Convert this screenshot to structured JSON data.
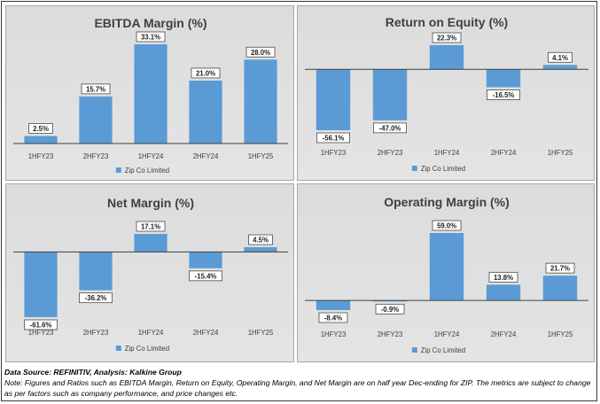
{
  "colors": {
    "bar": "#5b9bd5",
    "axis": "#3f3f3f",
    "text": "#404040"
  },
  "chart_data": [
    {
      "type": "bar",
      "title": "EBITDA Margin (%)",
      "categories": [
        "1HFY23",
        "2HFY23",
        "1HFY24",
        "2HFY24",
        "1HFY25"
      ],
      "series": [
        {
          "name": "Zip Co Limited",
          "values": [
            2.5,
            15.7,
            33.1,
            21.0,
            28.0
          ]
        }
      ],
      "labels": [
        "2.5%",
        "15.7%",
        "33.1%",
        "21.0%",
        "28.0%"
      ],
      "ylim": [
        0,
        33.1
      ],
      "legend": "bottom"
    },
    {
      "type": "bar",
      "title": "Return on Equity (%)",
      "categories": [
        "1HFY23",
        "2HFY23",
        "1HFY24",
        "2HFY24",
        "1HFY25"
      ],
      "series": [
        {
          "name": "Zip Co Limited",
          "values": [
            -56.1,
            -47.0,
            22.3,
            -16.5,
            4.1
          ]
        }
      ],
      "labels": [
        "-56.1%",
        "-47.0%",
        "22.3%",
        "-16.5%",
        "4.1%"
      ],
      "ylim": [
        -56.1,
        22.3
      ],
      "legend": "bottom"
    },
    {
      "type": "bar",
      "title": "Net Margin (%)",
      "categories": [
        "1HFY23",
        "2HFY23",
        "1HFY24",
        "2HFY24",
        "1HFY25"
      ],
      "series": [
        {
          "name": "Zip Co Limited",
          "values": [
            -61.6,
            -36.2,
            17.1,
            -15.4,
            4.5
          ]
        }
      ],
      "labels": [
        "-61.6%",
        "-36.2%",
        "17.1%",
        "-15.4%",
        "4.5%"
      ],
      "ylim": [
        -61.6,
        17.1
      ],
      "legend": "bottom"
    },
    {
      "type": "bar",
      "title": "Operating Margin (%)",
      "categories": [
        "1HFY23",
        "2HFY23",
        "1HFY24",
        "2HFY24",
        "1HFY25"
      ],
      "series": [
        {
          "name": "Zip Co Limited",
          "values": [
            -8.4,
            -0.9,
            59.0,
            13.8,
            21.7
          ]
        }
      ],
      "labels": [
        "-8.4%",
        "-0.9%",
        "59.0%",
        "13.8%",
        "21.7%"
      ],
      "ylim": [
        -8.4,
        59.0
      ],
      "legend": "bottom"
    }
  ],
  "footer": {
    "source": "Data Source: REFINITIV, Analysis: Kalkine Group",
    "note": "Note: Figures and Ratios such as  EBITDA Margin, Return on Equity, Operating Margin, and Net Margin are on half year Dec-ending for ZIP. The metrics are subject to change as per factors such as company performance, and price changes etc."
  }
}
